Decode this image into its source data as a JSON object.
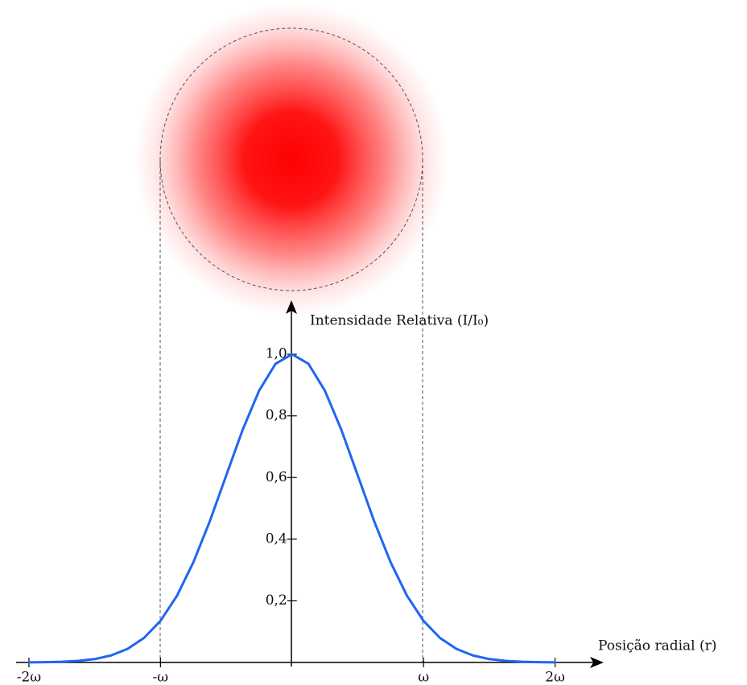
{
  "chart_data": {
    "type": "line",
    "x_label": "Posição radial (r)",
    "y_label": "Intensidade Relativa (I/I₀)",
    "x": [
      -2,
      -1.875,
      -1.75,
      -1.625,
      -1.5,
      -1.375,
      -1.25,
      -1.125,
      -1,
      -0.875,
      -0.75,
      -0.625,
      -0.5,
      -0.375,
      -0.25,
      -0.125,
      0,
      0.125,
      0.25,
      0.375,
      0.5,
      0.625,
      0.75,
      0.875,
      1,
      1.125,
      1.25,
      1.375,
      1.5,
      1.625,
      1.75,
      1.875,
      2
    ],
    "series": [
      {
        "color": "#1f66f0",
        "values": [
          0.0003,
          0.0009,
          0.0022,
          0.0051,
          0.011,
          0.0228,
          0.044,
          0.0796,
          0.135,
          0.216,
          0.325,
          0.458,
          0.607,
          0.755,
          0.882,
          0.969,
          1,
          0.969,
          0.882,
          0.755,
          0.607,
          0.458,
          0.325,
          0.216,
          0.135,
          0.0796,
          0.044,
          0.0228,
          0.011,
          0.0051,
          0.0022,
          0.0009,
          0.0003
        ]
      }
    ],
    "xlim": [
      -2.22,
      2.37
    ],
    "ylim": [
      0,
      1.17
    ],
    "xticks": [
      {
        "value": -2,
        "label": "-2ω"
      },
      {
        "value": -1,
        "label": "-ω"
      },
      {
        "value": 1,
        "label": "ω"
      },
      {
        "value": 2,
        "label": "2ω"
      }
    ],
    "yticks": [
      {
        "value": 0.2,
        "label": "0,2"
      },
      {
        "value": 0.4,
        "label": "0,4"
      },
      {
        "value": 0.6,
        "label": "0,6"
      },
      {
        "value": 0.8,
        "label": "0,8"
      },
      {
        "value": 1.0,
        "label": "1,0"
      }
    ]
  }
}
